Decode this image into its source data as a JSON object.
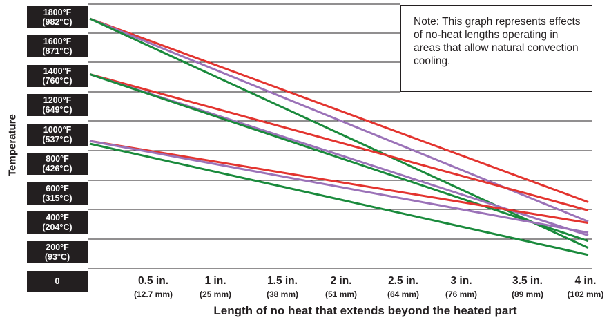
{
  "chart_data": {
    "type": "line",
    "title": "",
    "xlabel": "Length of no heat that extends beyond the heated part",
    "ylabel": "Temperature",
    "x_ticks": [
      {
        "value": 0.5,
        "label": "0.5 in.",
        "sub": "(12.7 mm)"
      },
      {
        "value": 1.0,
        "label": "1 in.",
        "sub": "(25 mm)"
      },
      {
        "value": 1.5,
        "label": "1.5 in.",
        "sub": "(38 mm)"
      },
      {
        "value": 2.0,
        "label": "2 in.",
        "sub": "(51 mm)"
      },
      {
        "value": 2.5,
        "label": "2.5 in.",
        "sub": "(64 mm)"
      },
      {
        "value": 3.0,
        "label": "3 in.",
        "sub": "(76 mm)"
      },
      {
        "value": 3.5,
        "label": "3.5 in.",
        "sub": "(89 mm)"
      },
      {
        "value": 4.0,
        "label": "4 in.",
        "sub": "(102 mm)"
      }
    ],
    "y_ticks": [
      {
        "value": 1800,
        "f": "1800°F",
        "c": "(982°C)"
      },
      {
        "value": 1600,
        "f": "1600°F",
        "c": "(871°C)"
      },
      {
        "value": 1400,
        "f": "1400°F",
        "c": "(760°C)"
      },
      {
        "value": 1200,
        "f": "1200°F",
        "c": "(649°C)"
      },
      {
        "value": 1000,
        "f": "1000°F",
        "c": "(537°C)"
      },
      {
        "value": 800,
        "f": "800°F",
        "c": "(426°C)"
      },
      {
        "value": 600,
        "f": "600°F",
        "c": "(315°C)"
      },
      {
        "value": 400,
        "f": "400°F",
        "c": "(204°C)"
      },
      {
        "value": 200,
        "f": "200°F",
        "c": "(93°C)"
      },
      {
        "value": 0,
        "f": "0",
        "c": ""
      }
    ],
    "xlim": [
      0,
      4
    ],
    "ylim": [
      0,
      1800
    ],
    "grid": true,
    "note": "Note:  This graph represents effects of no-heat lengths operating in areas that allow natural convection cooling.",
    "series": [
      {
        "color": "#e3342f",
        "values": [
          [
            0,
            1800
          ],
          [
            4,
            480
          ]
        ]
      },
      {
        "color": "#9b72b8",
        "values": [
          [
            0,
            1800
          ],
          [
            4,
            340
          ]
        ]
      },
      {
        "color": "#1a8a3c",
        "values": [
          [
            0,
            1800
          ],
          [
            4,
            150
          ]
        ]
      },
      {
        "color": "#e3342f",
        "values": [
          [
            0,
            1400
          ],
          [
            4,
            420
          ]
        ]
      },
      {
        "color": "#9b72b8",
        "values": [
          [
            0,
            1400
          ],
          [
            4,
            240
          ]
        ]
      },
      {
        "color": "#1a8a3c",
        "values": [
          [
            0,
            1400
          ],
          [
            4,
            200
          ]
        ]
      },
      {
        "color": "#e3342f",
        "values": [
          [
            0,
            920
          ],
          [
            4,
            330
          ]
        ]
      },
      {
        "color": "#9b72b8",
        "values": [
          [
            0,
            920
          ],
          [
            4,
            260
          ]
        ]
      },
      {
        "color": "#1a8a3c",
        "values": [
          [
            0,
            900
          ],
          [
            4,
            100
          ]
        ]
      }
    ]
  }
}
